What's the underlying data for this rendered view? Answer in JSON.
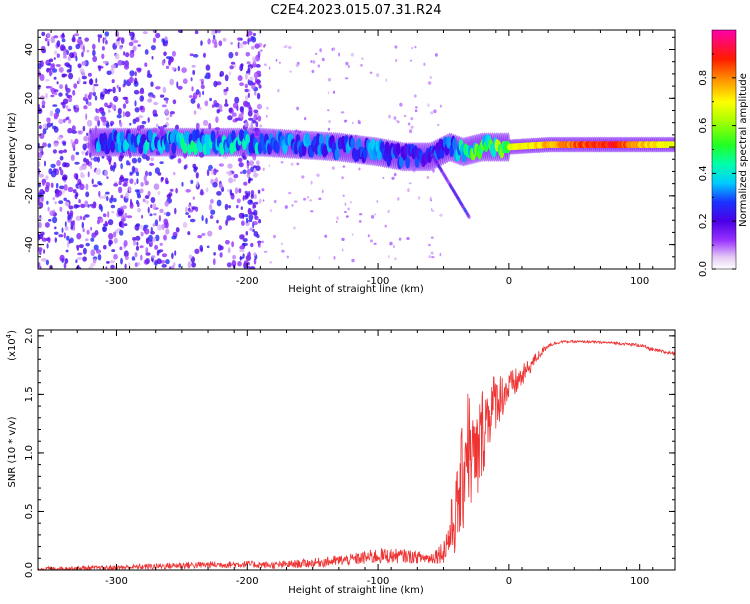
{
  "figure_title": "C2E4.2023.015.07.31.R24",
  "chart_data": [
    {
      "type": "heatmap",
      "title": "C2E4.2023.015.07.31.R24",
      "xlabel": "Height of straight line (km)",
      "ylabel": "Frequency (Hz)",
      "xlim": [
        -360,
        127
      ],
      "ylim": [
        -50,
        48
      ],
      "x_ticks": [
        -300,
        -200,
        -100,
        0,
        100
      ],
      "y_ticks": [
        -40,
        -20,
        0,
        20,
        40
      ],
      "grid": false,
      "colorbar": {
        "label": "Normalized spectral amplitude",
        "range": [
          0,
          1
        ],
        "ticks": [
          0.0,
          0.2,
          0.4,
          0.6,
          0.8
        ],
        "colormap": "rainbow"
      },
      "ridge": {
        "x": [
          -310,
          -280,
          -250,
          -220,
          -190,
          -160,
          -130,
          -100,
          -80,
          -60,
          -45,
          -35,
          -20,
          0,
          30,
          60,
          80,
          100,
          127
        ],
        "freq": [
          2,
          2,
          2,
          2,
          2,
          1,
          0,
          -2,
          -4,
          -4,
          0,
          -2,
          0,
          0,
          1,
          1,
          1,
          1,
          1
        ],
        "amplitude": [
          0.35,
          0.4,
          0.45,
          0.45,
          0.4,
          0.35,
          0.35,
          0.35,
          0.3,
          0.3,
          0.35,
          0.5,
          0.6,
          0.7,
          0.8,
          0.9,
          0.95,
          0.8,
          0.7
        ]
      }
    },
    {
      "type": "line",
      "xlabel": "Height of straight line (km)",
      "ylabel": "SNR (10 * v/v)",
      "y_multiplier": "(x10",
      "y_multiplier_exp": "4",
      "y_multiplier_close": ")",
      "xlim": [
        -360,
        127
      ],
      "ylim": [
        0,
        2.05
      ],
      "x_ticks": [
        -300,
        -200,
        -100,
        0,
        100
      ],
      "y_ticks": [
        "0.0",
        "0.5",
        "1.0",
        "1.5",
        "2.0"
      ],
      "color": "#ee3333",
      "series": [
        {
          "x": [
            -360,
            -300,
            -250,
            -200,
            -180,
            -150,
            -120,
            -100,
            -80,
            -60,
            -50,
            -45,
            -40,
            -35,
            -32,
            -30,
            -25,
            -20,
            -15,
            -10,
            -5,
            0,
            10,
            20,
            30,
            40,
            60,
            80,
            100,
            110,
            120,
            127
          ],
          "y": [
            0.01,
            0.02,
            0.04,
            0.05,
            0.04,
            0.06,
            0.09,
            0.12,
            0.12,
            0.1,
            0.16,
            0.3,
            0.5,
            0.8,
            1.2,
            1.0,
            0.9,
            1.2,
            1.35,
            1.45,
            1.5,
            1.55,
            1.65,
            1.8,
            1.92,
            1.95,
            1.95,
            1.94,
            1.92,
            1.88,
            1.86,
            1.85
          ],
          "noise_amplitude": [
            0.015,
            0.02,
            0.03,
            0.03,
            0.03,
            0.04,
            0.05,
            0.07,
            0.06,
            0.05,
            0.1,
            0.25,
            0.35,
            0.5,
            0.6,
            0.5,
            0.45,
            0.4,
            0.3,
            0.25,
            0.2,
            0.15,
            0.1,
            0.05,
            0.02,
            0.01,
            0.01,
            0.01,
            0.015,
            0.015,
            0.015,
            0.015
          ]
        }
      ]
    }
  ]
}
